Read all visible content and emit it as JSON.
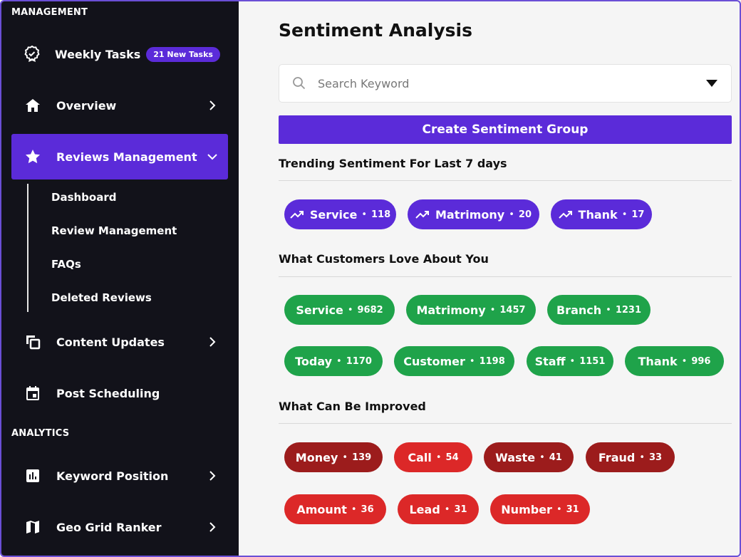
{
  "sidebar": {
    "management_label": "MANAGEMENT",
    "analytics_label": "ANALYTICS",
    "weekly_tasks": {
      "label": "Weekly Tasks",
      "badge": "21 New Tasks"
    },
    "overview": {
      "label": "Overview"
    },
    "reviews_management": {
      "label": "Reviews Management"
    },
    "sub_items": [
      "Dashboard",
      "Review Management",
      "FAQs",
      "Deleted Reviews"
    ],
    "content_updates": {
      "label": "Content Updates"
    },
    "post_scheduling": {
      "label": "Post Scheduling"
    },
    "keyword_position": {
      "label": "Keyword Position"
    },
    "geo_grid_ranker": {
      "label": "Geo Grid Ranker"
    }
  },
  "main": {
    "title": "Sentiment Analysis",
    "search_placeholder": "Search Keyword",
    "create_button": "Create Sentiment Group",
    "trending_heading": "Trending Sentiment For Last 7 days",
    "love_heading": "What Customers Love About You",
    "improve_heading": "What Can Be Improved",
    "trending": [
      {
        "name": "Service",
        "count": "118"
      },
      {
        "name": "Matrimony",
        "count": "20"
      },
      {
        "name": "Thank",
        "count": "17"
      }
    ],
    "love": [
      {
        "name": "Service",
        "count": "9682"
      },
      {
        "name": "Matrimony",
        "count": "1457"
      },
      {
        "name": "Branch",
        "count": "1231"
      },
      {
        "name": "Today",
        "count": "1170"
      },
      {
        "name": "Customer",
        "count": "1198"
      },
      {
        "name": "Staff",
        "count": "1151"
      },
      {
        "name": "Thank",
        "count": "996"
      }
    ],
    "improve": [
      {
        "name": "Money",
        "count": "139"
      },
      {
        "name": "Call",
        "count": "54"
      },
      {
        "name": "Waste",
        "count": "41"
      },
      {
        "name": "Fraud",
        "count": "33"
      },
      {
        "name": "Amount",
        "count": "36"
      },
      {
        "name": "Lead",
        "count": "31"
      },
      {
        "name": "Number",
        "count": "31"
      }
    ]
  },
  "colors": {
    "accent": "#5b2bd9",
    "positive": "#1fa34a",
    "negative_dark": "#9c1c1c",
    "negative": "#dc2828",
    "sidebar_bg": "#12121a"
  },
  "icons": {
    "weekly_tasks": "award-badge-icon",
    "overview": "home-icon",
    "reviews_management": "star-icon",
    "content_updates": "copy-icon",
    "post_scheduling": "calendar-icon",
    "keyword_position": "bar-chart-icon",
    "geo_grid_ranker": "map-icon",
    "trend": "trending-up-icon",
    "search": "search-icon"
  }
}
